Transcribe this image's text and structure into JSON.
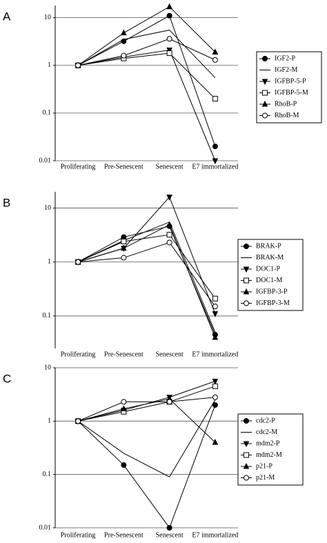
{
  "chart_data": [
    {
      "type": "line",
      "panel": "A",
      "log_scale": true,
      "grid": true,
      "legend": "right",
      "categories": [
        "Proliferating",
        "Pre-Senescent",
        "Senescent",
        "E7 immortalized"
      ],
      "ylim": [
        0.01,
        18
      ],
      "yticks": [
        0.01,
        0.1,
        1,
        10
      ],
      "series": [
        {
          "name": "IGF2-P",
          "color": "#000000",
          "marker": "circle-filled",
          "values": [
            1,
            3.2,
            11,
            0.02
          ]
        },
        {
          "name": "IGF2-M",
          "color": "#000000",
          "marker": "none",
          "values": [
            1,
            3.5,
            5.5,
            0.55
          ]
        },
        {
          "name": "IGFBP-5-P",
          "color": "#000000",
          "marker": "triangle-down-filled",
          "values": [
            1,
            1.5,
            2.1,
            0.01
          ]
        },
        {
          "name": "IGFBP-5-M",
          "color": "#000000",
          "marker": "square-open",
          "values": [
            1,
            1.4,
            1.8,
            0.2
          ]
        },
        {
          "name": "RhoB-P",
          "color": "#000000",
          "marker": "triangle-up-filled",
          "values": [
            1,
            4.8,
            17,
            1.9
          ]
        },
        {
          "name": "RhoB-M",
          "color": "#000000",
          "marker": "circle-open",
          "values": [
            1,
            1.6,
            3.6,
            1.3
          ]
        }
      ]
    },
    {
      "type": "line",
      "panel": "B",
      "log_scale": true,
      "grid": true,
      "legend": "right",
      "categories": [
        "Proliferating",
        "Pre-Senescent",
        "Senescent",
        "E7 immortalized"
      ],
      "ylim": [
        0.025,
        20
      ],
      "yticks": [
        0.1,
        1,
        10
      ],
      "series": [
        {
          "name": "BRAK-P",
          "color": "#000000",
          "marker": "circle-filled",
          "values": [
            1,
            2.9,
            4.6,
            0.045
          ]
        },
        {
          "name": "BRAK-M",
          "color": "#000000",
          "marker": "none",
          "values": [
            1,
            2.5,
            5.5,
            0.05
          ]
        },
        {
          "name": "DOC1-P",
          "color": "#000000",
          "marker": "triangle-down-filled",
          "values": [
            1,
            1.8,
            16,
            0.11
          ]
        },
        {
          "name": "DOC1-M",
          "color": "#000000",
          "marker": "square-open",
          "values": [
            1,
            2.4,
            3.2,
            0.21
          ]
        },
        {
          "name": "IGFBP-3-P",
          "color": "#000000",
          "marker": "triangle-up-filled",
          "values": [
            1,
            1.8,
            4.9,
            0.04
          ]
        },
        {
          "name": "IGFBP-3-M",
          "color": "#000000",
          "marker": "circle-open",
          "values": [
            1,
            1.2,
            2.3,
            0.15
          ]
        }
      ]
    },
    {
      "type": "line",
      "panel": "C",
      "log_scale": true,
      "grid": true,
      "legend": "right",
      "categories": [
        "Proliferating",
        "Pre-Senescent",
        "Senescent",
        "E7 immortalized"
      ],
      "ylim": [
        0.01,
        10
      ],
      "yticks": [
        0.01,
        0.1,
        1,
        10
      ],
      "series": [
        {
          "name": "cdc2-P",
          "color": "#000000",
          "marker": "circle-filled",
          "values": [
            1,
            0.15,
            0.01,
            2.0
          ]
        },
        {
          "name": "cdc2-M",
          "color": "#000000",
          "marker": "none",
          "values": [
            1,
            0.25,
            0.09,
            2.5
          ]
        },
        {
          "name": "mdm2-P",
          "color": "#000000",
          "marker": "triangle-down-filled",
          "values": [
            1,
            1.6,
            2.8,
            5.6
          ]
        },
        {
          "name": "mdm2-M",
          "color": "#000000",
          "marker": "square-open",
          "values": [
            1,
            1.5,
            2.3,
            4.5
          ]
        },
        {
          "name": "p21-P",
          "color": "#000000",
          "marker": "triangle-up-filled",
          "values": [
            1,
            1.7,
            2.6,
            0.4
          ]
        },
        {
          "name": "p21-M",
          "color": "#000000",
          "marker": "circle-open",
          "values": [
            1,
            2.3,
            2.3,
            2.8
          ]
        }
      ]
    }
  ]
}
